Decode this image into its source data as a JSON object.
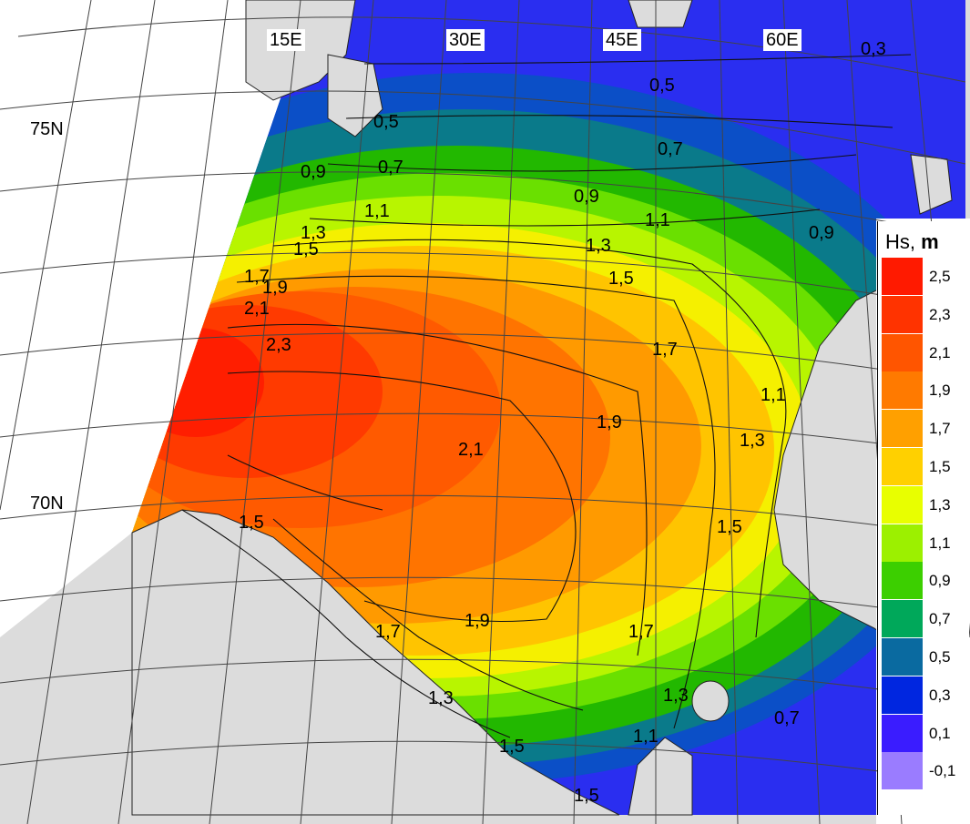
{
  "map": {
    "lon_labels": [
      "15E",
      "30E",
      "45E",
      "60E"
    ],
    "lat_labels": [
      "75N",
      "70N"
    ],
    "contour_labels": [
      "0,3",
      "0,5",
      "0,5",
      "0,7",
      "0,7",
      "0,9",
      "0,9",
      "0,9",
      "1,1",
      "1,1",
      "1,3",
      "1,3",
      "1,5",
      "1,5",
      "1,7",
      "1,9",
      "2,1",
      "2,3",
      "2,1",
      "1,9",
      "1,7",
      "1,5",
      "1,3",
      "1,1",
      "1,9",
      "1,7",
      "1,7",
      "1,3",
      "1,5",
      "1,3",
      "1,5",
      "1,1",
      "0,7",
      "1,5"
    ]
  },
  "legend": {
    "title": "Hs,",
    "unit": "m",
    "items": [
      {
        "value": "2,5",
        "color": "#ff1a00"
      },
      {
        "value": "2,3",
        "color": "#ff3300"
      },
      {
        "value": "2,1",
        "color": "#ff5500"
      },
      {
        "value": "1,9",
        "color": "#ff7a00"
      },
      {
        "value": "1,7",
        "color": "#ffa000"
      },
      {
        "value": "1,5",
        "color": "#ffd000"
      },
      {
        "value": "1,3",
        "color": "#e8ff00"
      },
      {
        "value": "1,1",
        "color": "#9cf000"
      },
      {
        "value": "0,9",
        "color": "#3ccf00"
      },
      {
        "value": "0,7",
        "color": "#00a85a"
      },
      {
        "value": "0,5",
        "color": "#0a6aa0"
      },
      {
        "value": "0,3",
        "color": "#0026e0"
      },
      {
        "value": "0,1",
        "color": "#3a1cff"
      },
      {
        "value": "-0,1",
        "color": "#9a7cff"
      }
    ]
  }
}
